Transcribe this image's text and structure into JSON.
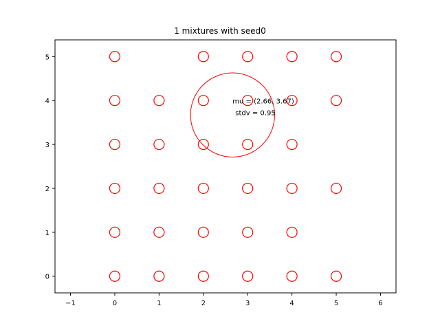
{
  "chart_data": {
    "type": "scatter",
    "title": "1 mixtures with seed0",
    "xlabel": "",
    "ylabel": "",
    "xlim": [
      -1.35,
      6.35
    ],
    "ylim": [
      -0.38,
      5.38
    ],
    "xticks": [
      -1,
      0,
      1,
      2,
      3,
      4,
      5,
      6
    ],
    "yticks": [
      0,
      1,
      2,
      3,
      4,
      5
    ],
    "grid": false,
    "marker": "hollow-circle",
    "color": "#ff0000",
    "points": [
      [
        0,
        5
      ],
      [
        2,
        5
      ],
      [
        3,
        5
      ],
      [
        4,
        5
      ],
      [
        5,
        5
      ],
      [
        0,
        4
      ],
      [
        1,
        4
      ],
      [
        2,
        4
      ],
      [
        3,
        4
      ],
      [
        4,
        4
      ],
      [
        5,
        4
      ],
      [
        0,
        3
      ],
      [
        1,
        3
      ],
      [
        2,
        3
      ],
      [
        3,
        3
      ],
      [
        4,
        3
      ],
      [
        0,
        2
      ],
      [
        1,
        2
      ],
      [
        2,
        2
      ],
      [
        3,
        2
      ],
      [
        4,
        2
      ],
      [
        5,
        2
      ],
      [
        0,
        1
      ],
      [
        1,
        1
      ],
      [
        2,
        1
      ],
      [
        3,
        1
      ],
      [
        4,
        1
      ],
      [
        0,
        0
      ],
      [
        1,
        0
      ],
      [
        2,
        0
      ],
      [
        3,
        0
      ],
      [
        4,
        0
      ],
      [
        5,
        0
      ]
    ],
    "mixture": {
      "mu": [
        2.66,
        3.67
      ],
      "stdv": 0.95,
      "label_line1": "mu = (2.66, 3.67)",
      "label_line2": "stdv = 0.95"
    }
  }
}
